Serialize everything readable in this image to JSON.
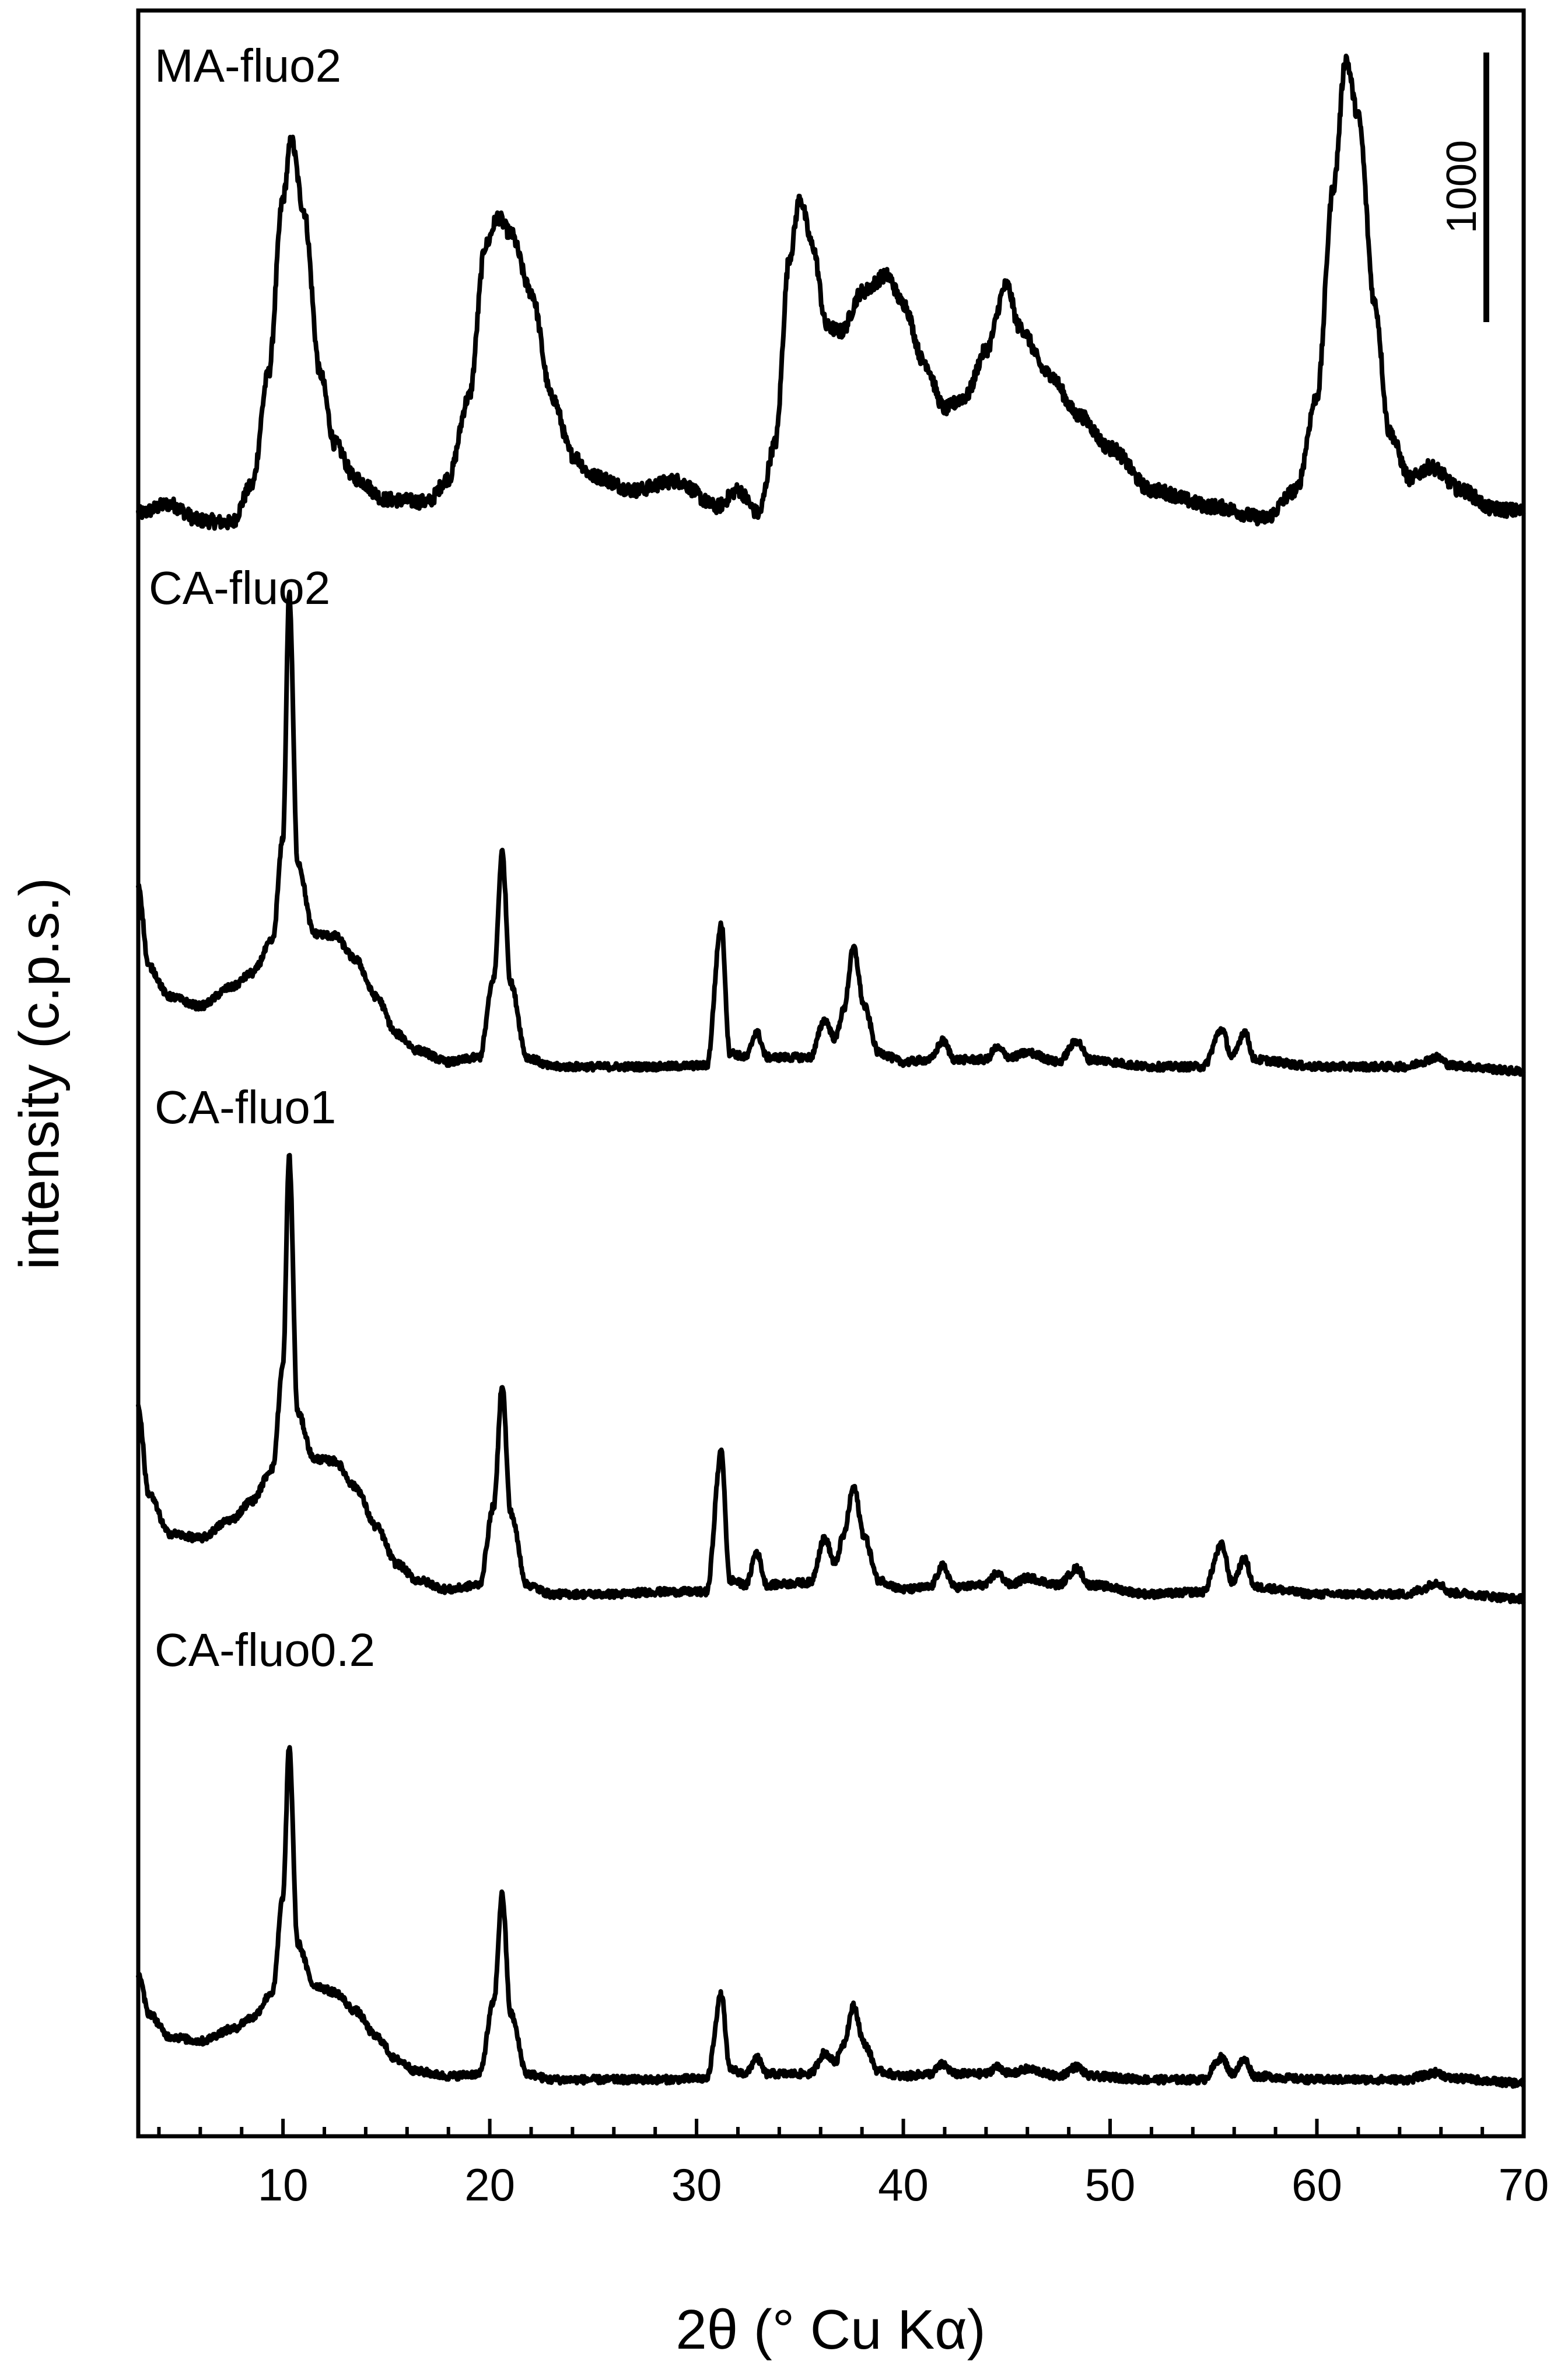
{
  "chart_data": {
    "type": "line",
    "title": "",
    "xlabel": "2θ (° Cu Kα)",
    "ylabel": "intensity (c.p.s.)",
    "xlim": [
      3,
      70
    ],
    "x_ticks": [
      10,
      20,
      30,
      40,
      50,
      60,
      70
    ],
    "x_tick_labels": [
      "10",
      "20",
      "30",
      "40",
      "50",
      "60",
      "70"
    ],
    "x_minor_step": 2,
    "y_ticks_visible": false,
    "layout": "vertically stacked (offset) patterns",
    "scale_bar": {
      "label": "1000",
      "value": 1000,
      "units": "c.p.s."
    },
    "series": [
      {
        "name": "MA-fluo2",
        "peaks": [
          [
            10.4,
            1600
          ],
          [
            20.4,
            1270
          ],
          [
            35.0,
            1350
          ],
          [
            39.2,
            1020
          ],
          [
            45.0,
            980
          ],
          [
            61.4,
            1950
          ]
        ],
        "points": [
          [
            3.0,
            0
          ],
          [
            4.5,
            40
          ],
          [
            6.0,
            -30
          ],
          [
            7.5,
            -40
          ],
          [
            8.5,
            120
          ],
          [
            9.3,
            600
          ],
          [
            10.0,
            1350
          ],
          [
            10.4,
            1600
          ],
          [
            11.0,
            1300
          ],
          [
            11.8,
            600
          ],
          [
            12.5,
            300
          ],
          [
            13.5,
            150
          ],
          [
            15.0,
            60
          ],
          [
            17.0,
            50
          ],
          [
            18.0,
            150
          ],
          [
            19.0,
            500
          ],
          [
            19.8,
            1150
          ],
          [
            20.4,
            1270
          ],
          [
            21.0,
            1200
          ],
          [
            22.0,
            950
          ],
          [
            23.0,
            500
          ],
          [
            24.0,
            250
          ],
          [
            25.0,
            160
          ],
          [
            27.0,
            100
          ],
          [
            29.0,
            140
          ],
          [
            31.0,
            30
          ],
          [
            32.0,
            100
          ],
          [
            33.0,
            0
          ],
          [
            33.8,
            300
          ],
          [
            34.5,
            1100
          ],
          [
            35.0,
            1350
          ],
          [
            35.6,
            1150
          ],
          [
            36.3,
            800
          ],
          [
            37.0,
            780
          ],
          [
            38.0,
            950
          ],
          [
            39.2,
            1020
          ],
          [
            40.0,
            900
          ],
          [
            41.0,
            650
          ],
          [
            42.0,
            450
          ],
          [
            43.0,
            500
          ],
          [
            44.0,
            700
          ],
          [
            45.0,
            980
          ],
          [
            45.6,
            800
          ],
          [
            47.0,
            600
          ],
          [
            48.5,
            420
          ],
          [
            50.0,
            280
          ],
          [
            52.0,
            100
          ],
          [
            55.0,
            30
          ],
          [
            57.5,
            -20
          ],
          [
            59.0,
            100
          ],
          [
            60.0,
            500
          ],
          [
            60.8,
            1400
          ],
          [
            61.4,
            1950
          ],
          [
            62.0,
            1700
          ],
          [
            62.8,
            900
          ],
          [
            63.5,
            350
          ],
          [
            64.5,
            150
          ],
          [
            65.5,
            200
          ],
          [
            67.0,
            100
          ],
          [
            68.5,
            20
          ],
          [
            70.0,
            10
          ]
        ]
      },
      {
        "name": "CA-fluo2",
        "peaks": [
          [
            10.3,
            2050
          ],
          [
            20.6,
            940
          ],
          [
            31.2,
            630
          ],
          [
            37.6,
            530
          ]
        ],
        "points": [
          [
            3.0,
            800
          ],
          [
            3.5,
            450
          ],
          [
            4.5,
            320
          ],
          [
            6.0,
            280
          ],
          [
            7.5,
            360
          ],
          [
            8.5,
            420
          ],
          [
            9.5,
            560
          ],
          [
            10.0,
            1000
          ],
          [
            10.3,
            2050
          ],
          [
            10.7,
            900
          ],
          [
            11.5,
            590
          ],
          [
            12.5,
            580
          ],
          [
            13.5,
            480
          ],
          [
            14.5,
            320
          ],
          [
            15.5,
            160
          ],
          [
            16.5,
            90
          ],
          [
            18.0,
            40
          ],
          [
            19.5,
            60
          ],
          [
            20.2,
            400
          ],
          [
            20.6,
            940
          ],
          [
            21.0,
            380
          ],
          [
            21.8,
            60
          ],
          [
            23.0,
            20
          ],
          [
            26.0,
            20
          ],
          [
            28.0,
            20
          ],
          [
            30.5,
            25
          ],
          [
            31.2,
            630
          ],
          [
            31.6,
            80
          ],
          [
            32.4,
            60
          ],
          [
            32.9,
            170
          ],
          [
            33.4,
            60
          ],
          [
            35.5,
            60
          ],
          [
            36.2,
            220
          ],
          [
            36.7,
            140
          ],
          [
            37.1,
            260
          ],
          [
            37.6,
            530
          ],
          [
            38.1,
            280
          ],
          [
            38.8,
            80
          ],
          [
            40.0,
            40
          ],
          [
            41.3,
            50
          ],
          [
            41.9,
            130
          ],
          [
            42.5,
            50
          ],
          [
            44.0,
            50
          ],
          [
            44.5,
            100
          ],
          [
            45.2,
            60
          ],
          [
            46.0,
            80
          ],
          [
            47.5,
            40
          ],
          [
            48.4,
            130
          ],
          [
            49.0,
            50
          ],
          [
            52.0,
            20
          ],
          [
            54.5,
            20
          ],
          [
            55.4,
            180
          ],
          [
            55.9,
            60
          ],
          [
            56.5,
            170
          ],
          [
            57.0,
            50
          ],
          [
            60.0,
            20
          ],
          [
            64.5,
            20
          ],
          [
            65.0,
            40
          ],
          [
            65.8,
            60
          ],
          [
            66.5,
            25
          ],
          [
            70.0,
            0
          ]
        ]
      },
      {
        "name": "CA-fluo1",
        "peaks": [
          [
            10.3,
            1900
          ],
          [
            20.6,
            920
          ],
          [
            31.2,
            630
          ],
          [
            37.6,
            480
          ]
        ],
        "points": [
          [
            3.0,
            820
          ],
          [
            3.5,
            450
          ],
          [
            4.5,
            280
          ],
          [
            6.0,
            260
          ],
          [
            7.5,
            340
          ],
          [
            8.5,
            420
          ],
          [
            9.5,
            560
          ],
          [
            10.0,
            1000
          ],
          [
            10.3,
            1900
          ],
          [
            10.7,
            800
          ],
          [
            11.5,
            600
          ],
          [
            12.5,
            590
          ],
          [
            13.5,
            480
          ],
          [
            14.5,
            310
          ],
          [
            15.5,
            150
          ],
          [
            16.5,
            80
          ],
          [
            18.0,
            40
          ],
          [
            19.5,
            60
          ],
          [
            20.2,
            400
          ],
          [
            20.6,
            920
          ],
          [
            21.0,
            370
          ],
          [
            21.8,
            60
          ],
          [
            23.0,
            20
          ],
          [
            26.0,
            20
          ],
          [
            28.0,
            30
          ],
          [
            30.5,
            30
          ],
          [
            31.2,
            630
          ],
          [
            31.6,
            80
          ],
          [
            32.4,
            60
          ],
          [
            32.9,
            200
          ],
          [
            33.4,
            60
          ],
          [
            35.5,
            70
          ],
          [
            36.2,
            260
          ],
          [
            36.7,
            150
          ],
          [
            37.1,
            270
          ],
          [
            37.6,
            480
          ],
          [
            38.1,
            270
          ],
          [
            38.8,
            80
          ],
          [
            40.0,
            40
          ],
          [
            41.3,
            50
          ],
          [
            41.9,
            140
          ],
          [
            42.5,
            50
          ],
          [
            44.0,
            60
          ],
          [
            44.5,
            110
          ],
          [
            45.2,
            60
          ],
          [
            46.0,
            90
          ],
          [
            47.5,
            60
          ],
          [
            48.4,
            130
          ],
          [
            49.0,
            60
          ],
          [
            52.0,
            20
          ],
          [
            54.5,
            30
          ],
          [
            55.4,
            230
          ],
          [
            55.9,
            70
          ],
          [
            56.5,
            170
          ],
          [
            57.0,
            50
          ],
          [
            60.0,
            20
          ],
          [
            64.5,
            20
          ],
          [
            65.0,
            40
          ],
          [
            65.8,
            70
          ],
          [
            66.5,
            25
          ],
          [
            70.0,
            0
          ]
        ]
      },
      {
        "name": "CA-fluo0.2",
        "peaks": [
          [
            10.3,
            1440
          ],
          [
            20.6,
            810
          ],
          [
            31.2,
            380
          ],
          [
            37.6,
            330
          ]
        ],
        "points": [
          [
            3.0,
            470
          ],
          [
            3.5,
            300
          ],
          [
            4.5,
            200
          ],
          [
            6.0,
            180
          ],
          [
            7.5,
            230
          ],
          [
            8.5,
            280
          ],
          [
            9.5,
            390
          ],
          [
            10.0,
            800
          ],
          [
            10.3,
            1440
          ],
          [
            10.7,
            600
          ],
          [
            11.5,
            420
          ],
          [
            12.5,
            390
          ],
          [
            13.5,
            310
          ],
          [
            14.5,
            200
          ],
          [
            15.5,
            100
          ],
          [
            16.5,
            50
          ],
          [
            18.0,
            30
          ],
          [
            19.5,
            40
          ],
          [
            20.2,
            350
          ],
          [
            20.6,
            810
          ],
          [
            21.0,
            300
          ],
          [
            21.8,
            40
          ],
          [
            23.0,
            15
          ],
          [
            26.0,
            15
          ],
          [
            28.0,
            15
          ],
          [
            30.5,
            20
          ],
          [
            31.2,
            380
          ],
          [
            31.6,
            60
          ],
          [
            32.4,
            40
          ],
          [
            32.9,
            110
          ],
          [
            33.4,
            40
          ],
          [
            35.5,
            40
          ],
          [
            36.2,
            130
          ],
          [
            36.7,
            90
          ],
          [
            37.1,
            170
          ],
          [
            37.6,
            330
          ],
          [
            38.1,
            170
          ],
          [
            38.8,
            50
          ],
          [
            40.0,
            30
          ],
          [
            41.3,
            40
          ],
          [
            41.9,
            80
          ],
          [
            42.5,
            40
          ],
          [
            44.0,
            40
          ],
          [
            44.5,
            70
          ],
          [
            45.2,
            40
          ],
          [
            46.0,
            60
          ],
          [
            47.5,
            30
          ],
          [
            48.4,
            70
          ],
          [
            49.0,
            30
          ],
          [
            52.0,
            15
          ],
          [
            54.5,
            15
          ],
          [
            55.4,
            110
          ],
          [
            55.9,
            40
          ],
          [
            56.5,
            100
          ],
          [
            57.0,
            30
          ],
          [
            60.0,
            15
          ],
          [
            64.5,
            15
          ],
          [
            65.0,
            30
          ],
          [
            65.8,
            45
          ],
          [
            66.5,
            20
          ],
          [
            70.0,
            0
          ]
        ]
      }
    ]
  }
}
